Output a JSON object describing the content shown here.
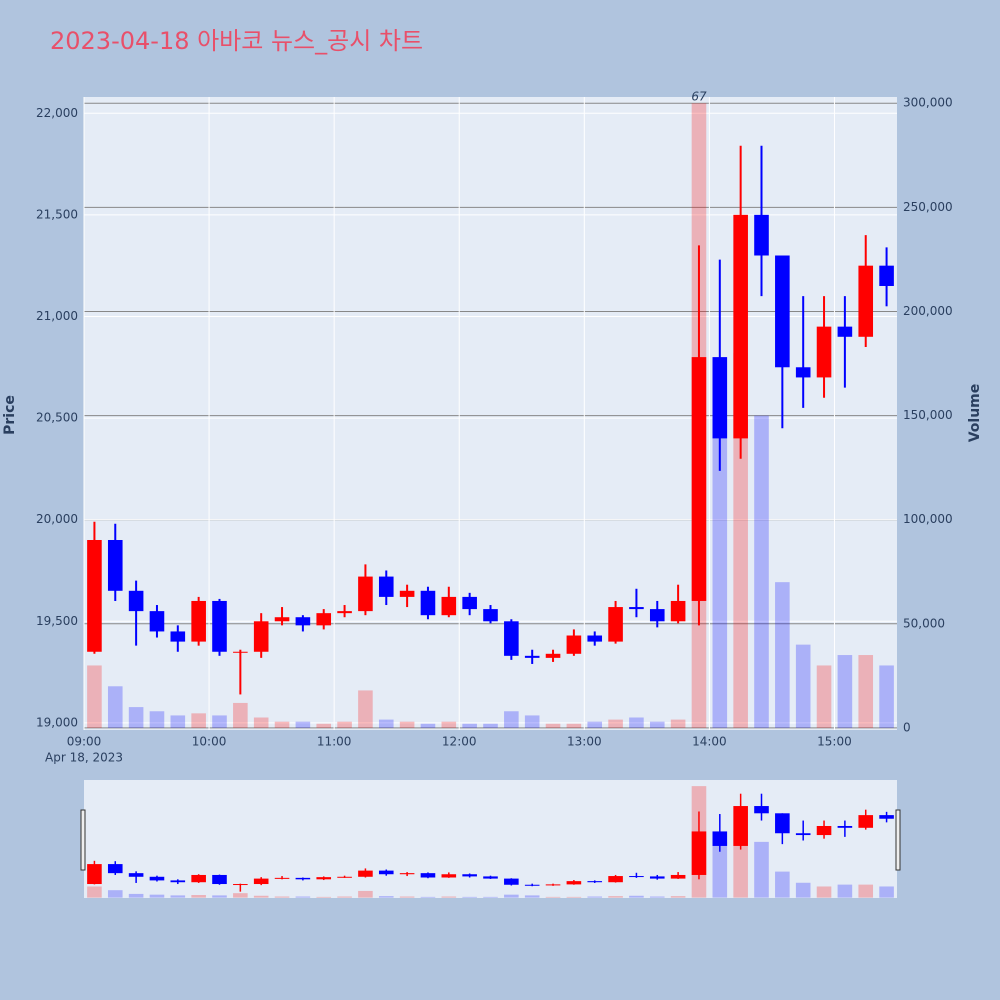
{
  "chart_data": {
    "type": "candlestick",
    "title": "2023-04-18 아바코 뉴스_공시 차트",
    "y_label": "Price",
    "y2_label": "Volume",
    "date_label": "Apr 18, 2023",
    "annotation": "67",
    "increasing_color": "#ff0000",
    "decreasing_color": "#0000ff",
    "x": [
      "09:00",
      "09:10",
      "09:20",
      "09:30",
      "09:40",
      "09:50",
      "10:00",
      "10:10",
      "10:20",
      "10:30",
      "10:40",
      "10:50",
      "11:00",
      "11:10",
      "11:20",
      "11:30",
      "11:40",
      "11:50",
      "12:00",
      "12:10",
      "12:20",
      "12:30",
      "12:40",
      "12:50",
      "13:00",
      "13:10",
      "13:20",
      "13:30",
      "13:40",
      "13:50",
      "14:00",
      "14:10",
      "14:20",
      "14:30",
      "14:40",
      "14:50",
      "15:00",
      "15:10",
      "15:20"
    ],
    "open": [
      19350,
      19900,
      19650,
      19550,
      19450,
      19400,
      19600,
      19350,
      19350,
      19500,
      19520,
      19480,
      19540,
      19550,
      19720,
      19620,
      19650,
      19530,
      19620,
      19560,
      19500,
      19330,
      19320,
      19340,
      19430,
      19400,
      19570,
      19560,
      19500,
      19600,
      20800,
      20400,
      21500,
      21300,
      20750,
      20700,
      20950,
      20900,
      21250
    ],
    "high": [
      19990,
      19980,
      19700,
      19580,
      19480,
      19620,
      19610,
      19360,
      19540,
      19570,
      19530,
      19560,
      19580,
      19780,
      19750,
      19680,
      19670,
      19670,
      19640,
      19580,
      19510,
      19360,
      19360,
      19460,
      19450,
      19600,
      19660,
      19600,
      19680,
      21350,
      21280,
      21840,
      21840,
      21300,
      21100,
      21100,
      21100,
      21400,
      21340
    ],
    "low": [
      19340,
      19600,
      19380,
      19420,
      19350,
      19380,
      19330,
      19140,
      19320,
      19480,
      19450,
      19460,
      19520,
      19530,
      19580,
      19570,
      19510,
      19520,
      19530,
      19490,
      19310,
      19290,
      19300,
      19330,
      19380,
      19390,
      19520,
      19470,
      19490,
      19480,
      20240,
      20300,
      21100,
      20450,
      20550,
      20600,
      20650,
      20850,
      21050
    ],
    "close": [
      19900,
      19650,
      19550,
      19450,
      19400,
      19600,
      19350,
      19350,
      19500,
      19520,
      19480,
      19540,
      19550,
      19720,
      19620,
      19650,
      19530,
      19620,
      19560,
      19500,
      19330,
      19320,
      19340,
      19430,
      19400,
      19570,
      19560,
      19500,
      19600,
      20800,
      20400,
      21500,
      21300,
      20750,
      20700,
      20950,
      20900,
      21250,
      21150
    ],
    "volume": [
      30000,
      20000,
      10000,
      8000,
      6000,
      7000,
      6000,
      12000,
      5000,
      3000,
      3000,
      2000,
      3000,
      18000,
      4000,
      3000,
      2000,
      3000,
      2000,
      2000,
      8000,
      6000,
      2000,
      2000,
      3000,
      4000,
      5000,
      3000,
      4000,
      300000,
      150000,
      180000,
      150000,
      70000,
      40000,
      30000,
      35000,
      35000,
      30000
    ],
    "xlim": [
      "09:00",
      "15:30"
    ],
    "xticks": [
      "09:00",
      "10:00",
      "11:00",
      "12:00",
      "13:00",
      "14:00",
      "15:00"
    ],
    "ylim": [
      18965,
      22080
    ],
    "yticks": [
      {
        "value": 19000,
        "label": "19,000"
      },
      {
        "value": 19500,
        "label": "19,500"
      },
      {
        "value": 20000,
        "label": "20,000"
      },
      {
        "value": 20500,
        "label": "20,500"
      },
      {
        "value": 21000,
        "label": "21,000"
      },
      {
        "value": 21500,
        "label": "21,500"
      },
      {
        "value": 22000,
        "label": "22,000"
      }
    ],
    "y2lim": [
      -1000,
      303000
    ],
    "y2ticks": [
      0,
      {
        "value": 50000,
        "label": "50,000"
      },
      {
        "value": 100000,
        "label": "100,000"
      },
      {
        "value": 150000,
        "label": "150,000"
      },
      {
        "value": 200000,
        "label": "200,000"
      },
      {
        "value": 250000,
        "label": "250,000"
      },
      {
        "value": 300000,
        "label": "300,000"
      }
    ]
  }
}
